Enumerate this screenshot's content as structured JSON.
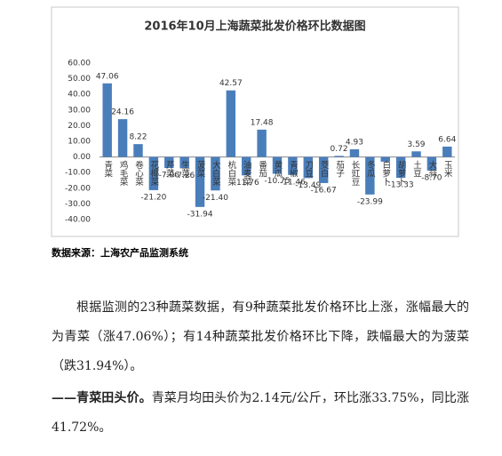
{
  "chart_data": {
    "type": "bar",
    "title": "2016年10月上海蔬菜批发价格环比数据图",
    "categories": [
      "青菜",
      "鸡毛菜",
      "卷心菜",
      "花椰菜",
      "芹菜",
      "生菜",
      "菠菜",
      "大白菜",
      "杭白菜",
      "油麦菜",
      "番茄",
      "黄瓜",
      "青椒",
      "刀豆",
      "茭白",
      "茄子",
      "长豇豆",
      "冬瓜",
      "白萝卜",
      "胡萝卜",
      "土豆",
      "大蒜",
      "玉米"
    ],
    "values": [
      47.06,
      24.16,
      8.22,
      -21.2,
      -7.06,
      -7.26,
      -31.94,
      -21.4,
      42.57,
      -11.76,
      17.48,
      -10.75,
      -11.46,
      -13.49,
      -16.67,
      0.72,
      4.93,
      -23.99,
      -3,
      -13.33,
      3.59,
      -8.7,
      6.64
    ],
    "value_labels": [
      "47.06",
      "24.16",
      "8.22",
      "-21.20",
      "-7.06",
      "-7.26",
      "-31.94",
      "-21.40",
      "42.57",
      "-11.76",
      "17.48",
      "-10.75",
      "-11.46",
      "-13.49",
      "-16.67",
      "0.72",
      "4.93",
      "-23.99",
      null,
      "-13.33",
      "3.59",
      "-8.70",
      "6.64"
    ],
    "color": "#4a7ebb",
    "ylim": [
      -40,
      60
    ],
    "yticks": [
      {
        "value": -40,
        "label": "-40.00"
      },
      {
        "value": -30,
        "label": "-30.00"
      },
      {
        "value": -20,
        "label": "-20.00"
      },
      {
        "value": -10,
        "label": "-10.00"
      },
      {
        "value": 0,
        "label": "0.00"
      },
      {
        "value": 10,
        "label": "10.00"
      },
      {
        "value": 20,
        "label": "20.00"
      },
      {
        "value": 30,
        "label": "30.00"
      },
      {
        "value": 40,
        "label": "40.00"
      },
      {
        "value": 50,
        "label": "50.00"
      },
      {
        "value": 60,
        "label": "60.00"
      }
    ],
    "grid": false
  },
  "source": "数据来源：上海农产品监测系统",
  "paragraph1": "根据监测的23种蔬菜数据，有9种蔬菜批发价格环比上涨，涨幅最大的为青菜（涨47.06%）；有14种蔬菜批发价格环比下降，跌幅最大的为菠菜（跌31.94%）。",
  "paragraph2": {
    "heading": "——青菜田头价。",
    "text": "青菜月均田头价为2.14元/公斤，环比涨33.75%，同比涨41.72%。"
  }
}
